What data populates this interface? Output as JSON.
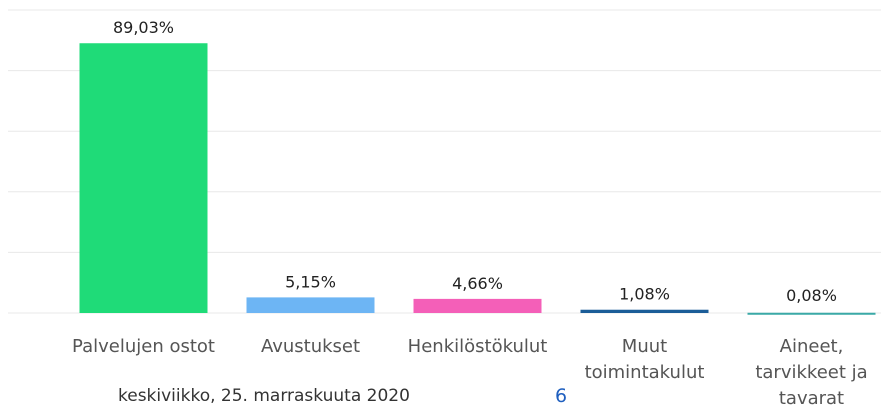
{
  "chart_data": {
    "type": "bar",
    "categories": [
      "Palvelujen ostot",
      "Avustukset",
      "Henkilöstökulut",
      "Muut toimintakulut",
      "Aineet, tarvikkeet ja tavarat"
    ],
    "values": [
      89.03,
      5.15,
      4.66,
      1.08,
      0.08
    ],
    "value_labels": [
      "89,03%",
      "5,15%",
      "4,66%",
      "1,08%",
      "0,08%"
    ],
    "colors": [
      "#1fdb78",
      "#6db5f4",
      "#f45fb8",
      "#1b5d98",
      "#3aa9a7"
    ],
    "ylim": [
      0,
      100
    ],
    "yticks": [
      0,
      20,
      40,
      60,
      80,
      100
    ],
    "grid": true
  },
  "footer": {
    "date": "keskiviikko, 25. marraskuuta 2020",
    "page": "6"
  }
}
